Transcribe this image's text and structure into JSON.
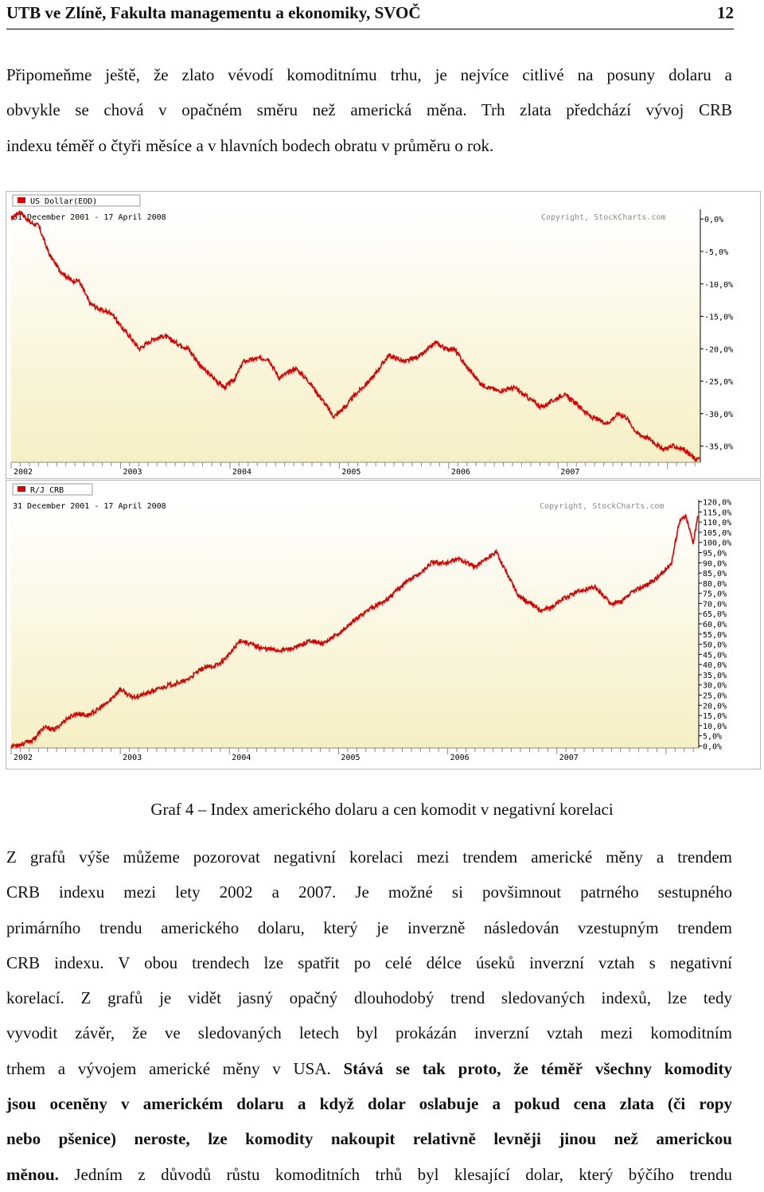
{
  "header": {
    "left": "UTB ve Zlíně, Fakulta managementu a ekonomiky, SVOČ",
    "page_number": "12"
  },
  "intro_lines": [
    "Připomeňme ještě, že zlato vévodí komoditnímu trhu, je nejvíce citlivé na posuny dolaru a",
    "obvykle se chová v opačném směru než americká měna. Trh zlata předchází vývoj CRB",
    "indexu téměř o čtyři měsíce a v hlavních bodech obratu v průměru o rok."
  ],
  "caption": "Graf 4 – Index amerického dolaru a cen komodit v negativní korelaci",
  "body_lines": [
    {
      "text": "Z grafů výše můžeme pozorovat negativní korelaci mezi trendem americké měny a trendem",
      "bold": ""
    },
    {
      "text": "CRB indexu mezi lety 2002 a 2007. Je možné si povšimnout patrného sestupného",
      "bold": ""
    },
    {
      "text": "primárního trendu amerického dolaru, který je inverzně následován vzestupným trendem",
      "bold": ""
    },
    {
      "text": "CRB indexu. V obou trendech lze spatřit po celé délce úseků inverzní vztah s negativní",
      "bold": ""
    },
    {
      "text": "korelací. Z grafů je vidět jasný opačný dlouhodobý trend sledovaných indexů, lze tedy",
      "bold": ""
    },
    {
      "text": "vyvodit závěr, že ve sledovaných letech byl prokázán inverzní vztah mezi komoditním",
      "bold": ""
    },
    {
      "text": "trhem a vývojem americké měny v USA. ",
      "bold": "Stává se tak proto, že téměř všechny komodity"
    },
    {
      "text": "",
      "bold": "jsou oceněny v americkém dolaru a když dolar oslabuje a pokud cena zlata (či ropy"
    },
    {
      "text": "",
      "bold": "nebo pšenice) neroste, lze komodity nakoupit relativně levněji jinou než americkou"
    },
    {
      "text": "",
      "bold": "měnou.",
      "after": " Jedním z důvodů růstu komoditních trhů byl klesající dolar, který býčího trendu"
    }
  ],
  "chart_data": [
    {
      "type": "line",
      "legend": "US Dollar(EOD)",
      "period": "31 December 2001 - 17 April 2008",
      "copyright": "Copyright, StockCharts.com",
      "x_ticks": [
        "2002",
        "2003",
        "2004",
        "2005",
        "2006",
        "2007"
      ],
      "y_ticks": [
        "0,0%",
        "-5,0%",
        "-10,0%",
        "-15,0%",
        "-20,0%",
        "-25,0%",
        "-30,0%",
        "-35,0%"
      ],
      "y_tick_values": [
        0,
        -5,
        -10,
        -15,
        -20,
        -25,
        -30,
        -35
      ],
      "ylim": [
        -37.5,
        1.5
      ],
      "xlim": [
        2002.0,
        2008.3
      ],
      "line_color": "#dd0000",
      "series": [
        {
          "x": [
            2002.0,
            2002.08,
            2002.17,
            2002.25,
            2002.35,
            2002.45,
            2002.55,
            2002.62,
            2002.72,
            2002.82,
            2002.92,
            2003.0,
            2003.08,
            2003.17,
            2003.3,
            2003.4,
            2003.5,
            2003.62,
            2003.75,
            2003.85,
            2003.95,
            2004.05,
            2004.12,
            2004.25,
            2004.35,
            2004.45,
            2004.6,
            2004.72,
            2004.85,
            2004.95,
            2005.05,
            2005.15,
            2005.3,
            2005.45,
            2005.6,
            2005.75,
            2005.88,
            2005.97,
            2006.05,
            2006.15,
            2006.3,
            2006.45,
            2006.6,
            2006.72,
            2006.85,
            2006.95,
            2007.05,
            2007.17,
            2007.3,
            2007.45,
            2007.55,
            2007.62,
            2007.72,
            2007.85,
            2007.95,
            2008.05,
            2008.15,
            2008.25,
            2008.29
          ],
          "y": [
            0,
            1.2,
            -0.5,
            -1.0,
            -5.5,
            -8.0,
            -9.5,
            -9.5,
            -13.0,
            -14.0,
            -14.5,
            -16.5,
            -18.0,
            -20.0,
            -18.5,
            -18.0,
            -19.0,
            -20.0,
            -23.0,
            -24.5,
            -26.0,
            -24.5,
            -22.0,
            -21.5,
            -21.5,
            -24.5,
            -23.0,
            -25.0,
            -28.0,
            -30.5,
            -29.0,
            -27.0,
            -24.5,
            -21.0,
            -22.0,
            -21.0,
            -19.0,
            -20.0,
            -20.0,
            -22.5,
            -25.5,
            -26.5,
            -26.0,
            -27.5,
            -29.0,
            -28.0,
            -27.0,
            -28.5,
            -30.5,
            -31.5,
            -30.0,
            -30.5,
            -33.0,
            -34.0,
            -35.5,
            -35.0,
            -35.5,
            -37.0,
            -37.0
          ]
        }
      ]
    },
    {
      "type": "line",
      "legend": "R/J CRB",
      "period": "31 December 2001 - 17 April 2008",
      "copyright": "Copyright, StockCharts.com",
      "x_ticks": [
        "2002",
        "2003",
        "2004",
        "2005",
        "2006",
        "2007"
      ],
      "y_ticks": [
        "120,0%",
        "115,0%",
        "110,0%",
        "105,0%",
        "100,0%",
        "95,0%",
        "90,0%",
        "85,0%",
        "80,0%",
        "75,0%",
        "70,0%",
        "65,0%",
        "60,0%",
        "55,0%",
        "50,0%",
        "45,0%",
        "40,0%",
        "35,0%",
        "30,0%",
        "25,0%",
        "20,0%",
        "15,0%",
        "10,0%",
        "5,0%",
        "0,0%"
      ],
      "y_tick_values": [
        120,
        115,
        110,
        105,
        100,
        95,
        90,
        85,
        80,
        75,
        70,
        65,
        60,
        55,
        50,
        45,
        40,
        35,
        30,
        25,
        20,
        15,
        10,
        5,
        0
      ],
      "ylim": [
        -1,
        121
      ],
      "xlim": [
        2002.0,
        2008.3
      ],
      "line_color": "#dd0000",
      "series": [
        {
          "x": [
            2002.0,
            2002.1,
            2002.2,
            2002.3,
            2002.4,
            2002.5,
            2002.6,
            2002.7,
            2002.8,
            2002.9,
            2003.0,
            2003.1,
            2003.2,
            2003.3,
            2003.45,
            2003.6,
            2003.75,
            2003.9,
            2004.0,
            2004.1,
            2004.2,
            2004.3,
            2004.45,
            2004.6,
            2004.75,
            2004.85,
            2005.0,
            2005.15,
            2005.3,
            2005.45,
            2005.6,
            2005.75,
            2005.85,
            2006.0,
            2006.1,
            2006.25,
            2006.35,
            2006.45,
            2006.55,
            2006.65,
            2006.75,
            2006.85,
            2006.95,
            2007.05,
            2007.2,
            2007.35,
            2007.5,
            2007.6,
            2007.7,
            2007.85,
            2007.95,
            2008.05,
            2008.12,
            2008.18,
            2008.25,
            2008.29
          ],
          "y": [
            0,
            1,
            3,
            9,
            8,
            13,
            16,
            15,
            18,
            22,
            28,
            24,
            25,
            27,
            30,
            32,
            38,
            40,
            45,
            52,
            50,
            48,
            47,
            48,
            52,
            50,
            55,
            62,
            68,
            72,
            80,
            85,
            90,
            90,
            92,
            88,
            92,
            95,
            84,
            74,
            70,
            67,
            68,
            72,
            76,
            78,
            70,
            71,
            76,
            80,
            84,
            90,
            110,
            113,
            100,
            113
          ]
        }
      ]
    }
  ]
}
